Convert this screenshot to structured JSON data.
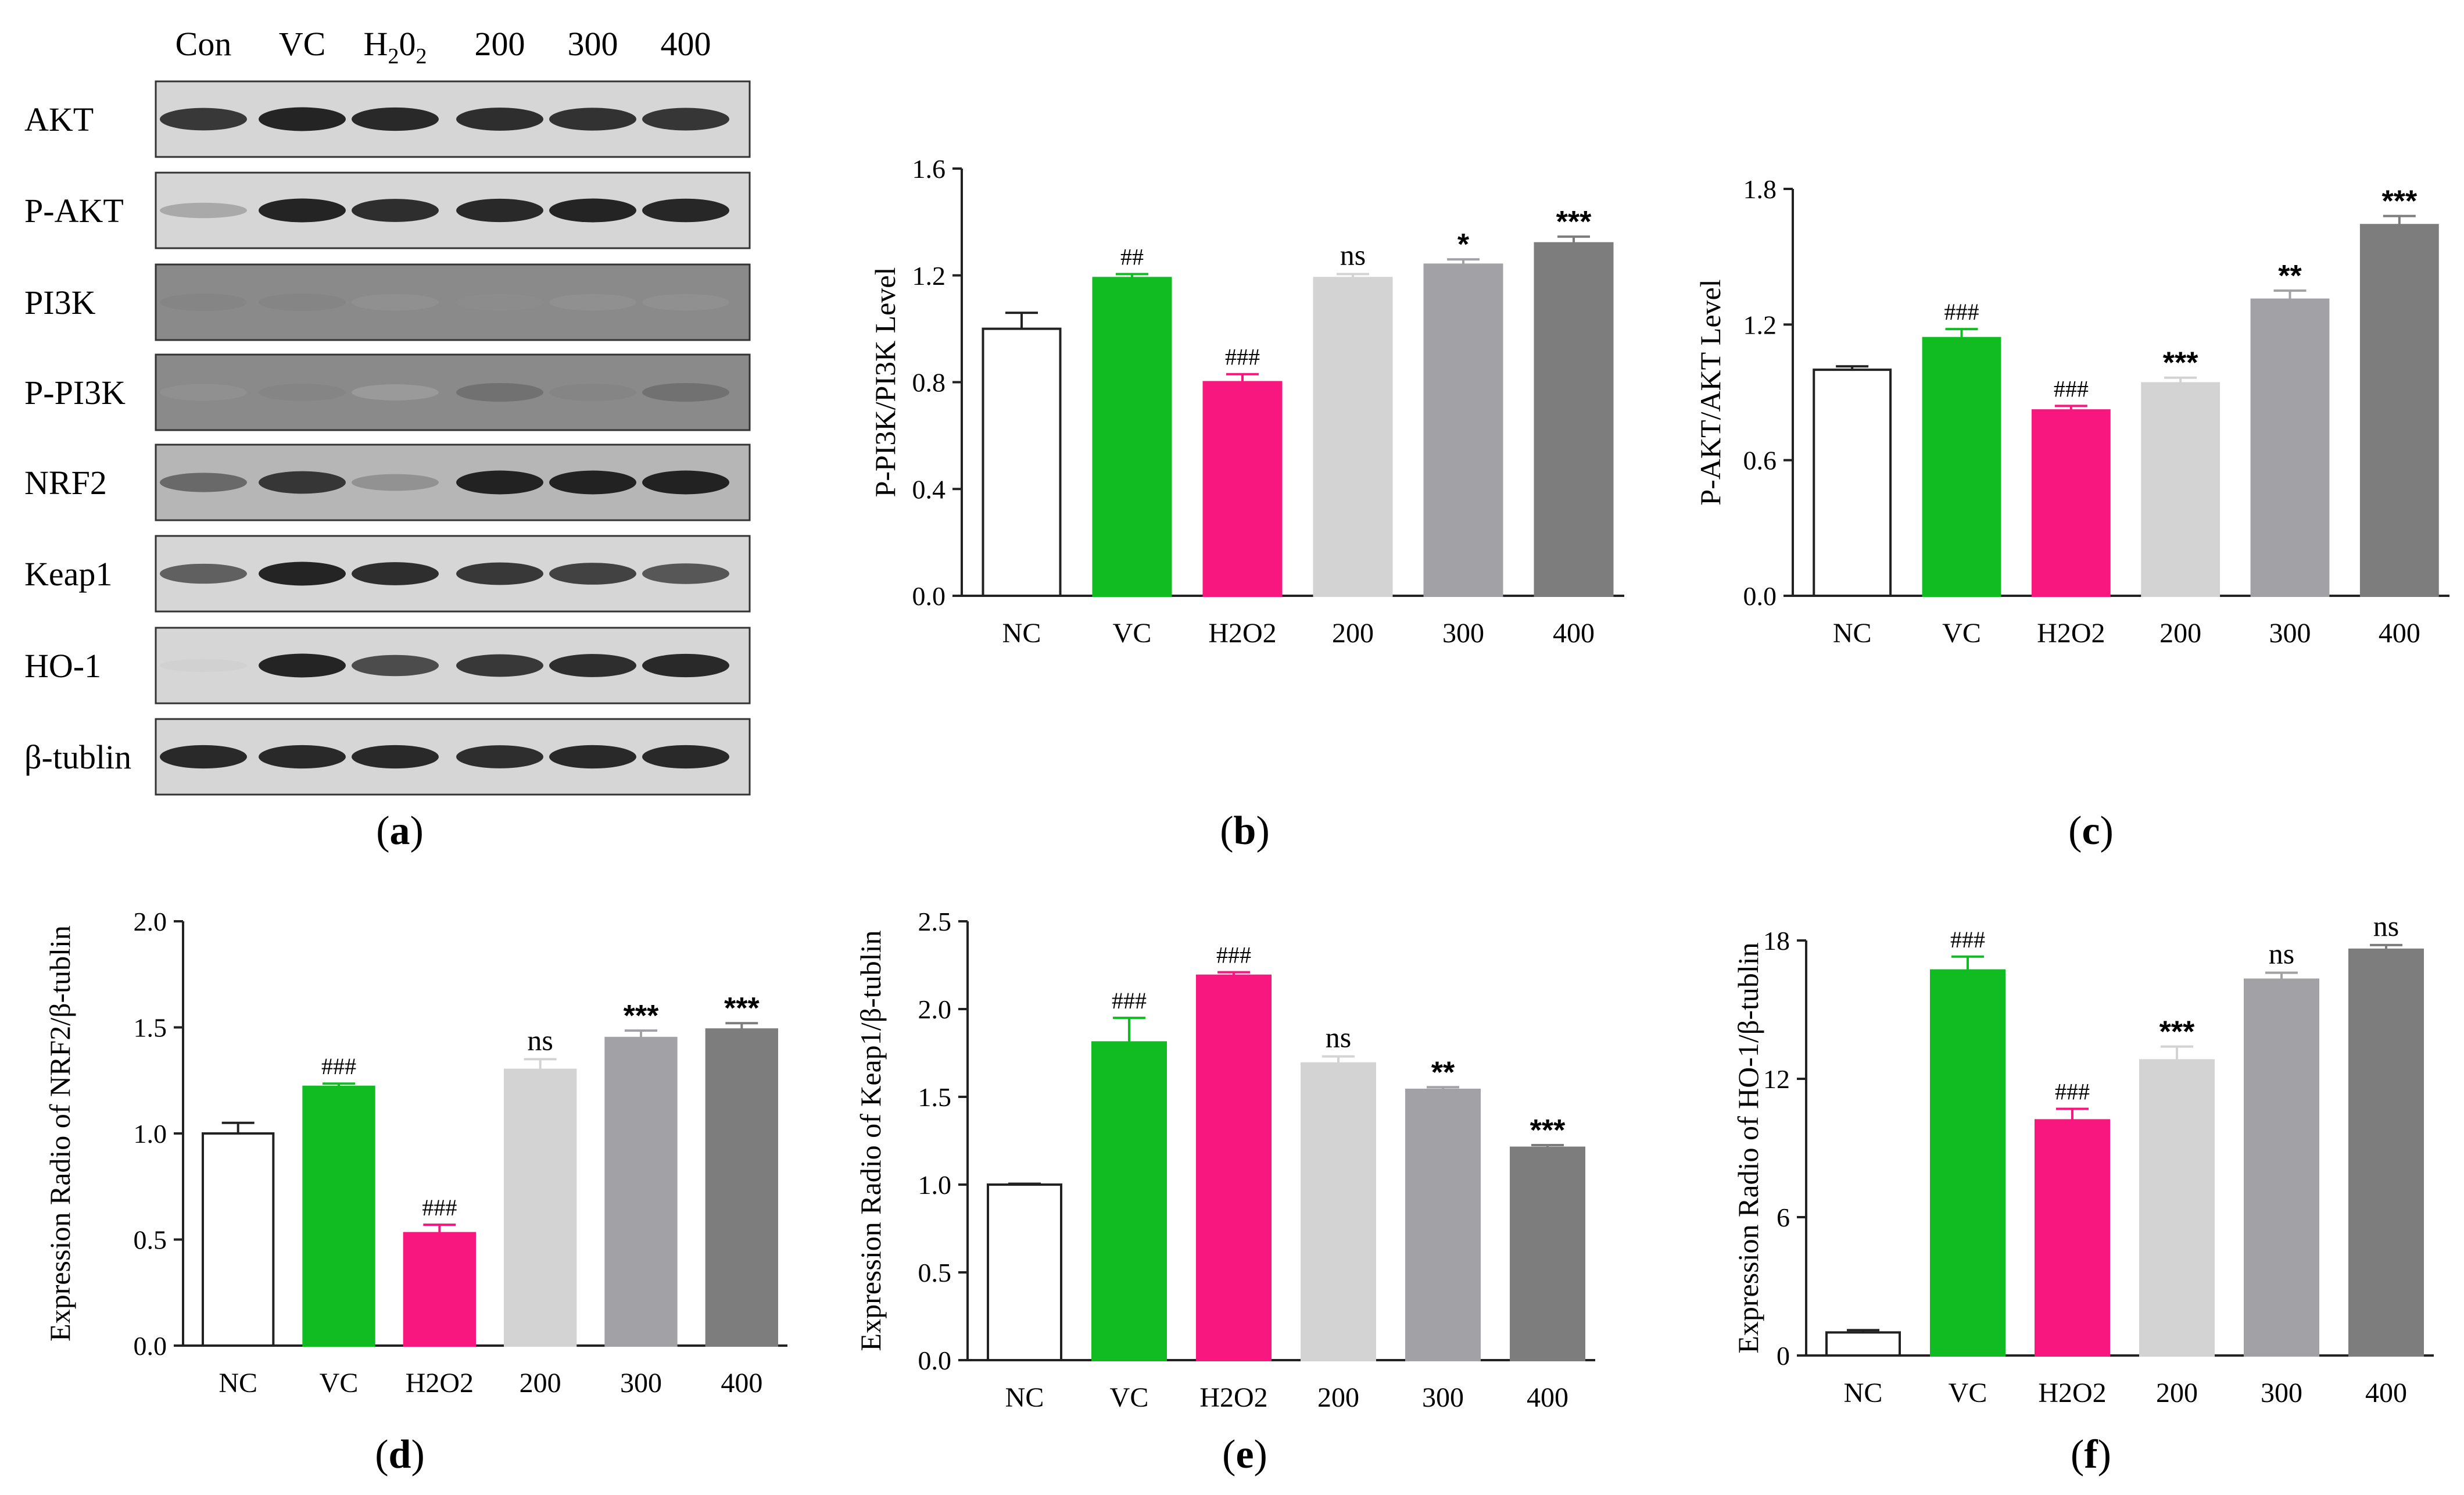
{
  "figure": {
    "panels": {
      "a": {
        "letter_open": "(",
        "letter": "a",
        "letter_close": ")"
      },
      "b": {
        "letter_open": "(",
        "letter": "b",
        "letter_close": ")"
      },
      "c": {
        "letter_open": "(",
        "letter": "c",
        "letter_close": ")"
      },
      "d": {
        "letter_open": "(",
        "letter": "d",
        "letter_close": ")"
      },
      "e": {
        "letter_open": "(",
        "letter": "e",
        "letter_close": ")"
      },
      "f": {
        "letter_open": "(",
        "letter": "f",
        "letter_close": ")"
      }
    }
  },
  "western_blot": {
    "lanes": [
      "Con",
      "VC",
      "H2O2",
      "200",
      "300",
      "400"
    ],
    "lane_h2o2": {
      "h": "H",
      "sub1": "2",
      "o": "0",
      "sub2": "2"
    },
    "rows": [
      "AKT",
      "P-AKT",
      "PI3K",
      "P-PI3K",
      "NRF2",
      "Keap1",
      "HO-1",
      "β-tublin"
    ],
    "band_intensity": [
      [
        0.85,
        0.95,
        0.92,
        0.9,
        0.88,
        0.86
      ],
      [
        0.3,
        0.95,
        0.9,
        0.92,
        0.95,
        0.93
      ],
      [
        0.45,
        0.45,
        0.4,
        0.42,
        0.4,
        0.4
      ],
      [
        0.4,
        0.45,
        0.35,
        0.55,
        0.45,
        0.55
      ],
      [
        0.6,
        0.85,
        0.4,
        0.95,
        0.95,
        0.95
      ],
      [
        0.65,
        0.95,
        0.9,
        0.85,
        0.8,
        0.7
      ],
      [
        0.1,
        0.95,
        0.75,
        0.85,
        0.9,
        0.92
      ],
      [
        0.92,
        0.92,
        0.92,
        0.9,
        0.92,
        0.92
      ]
    ]
  },
  "chart_data": [
    {
      "panel": "b",
      "type": "bar",
      "categories": [
        "NC",
        "VC",
        "H2O2",
        "200",
        "300",
        "400"
      ],
      "values": [
        1.0,
        1.19,
        0.8,
        1.19,
        1.24,
        1.32
      ],
      "errors": [
        0.06,
        0.015,
        0.03,
        0.015,
        0.02,
        0.025
      ],
      "annotations": [
        "",
        "##",
        "###",
        "ns",
        "*",
        "***"
      ],
      "ylabel": "P-PI3K/PI3K Level",
      "ylim": [
        0,
        1.6
      ],
      "yticks": [
        "0.0",
        "0.4",
        "0.8",
        "1.2",
        "1.6"
      ],
      "colors": [
        "#ffffff",
        "#11bb22",
        "#f7177f",
        "#d3d3d3",
        "#a1a1a6",
        "#7d7d7d"
      ]
    },
    {
      "panel": "c",
      "type": "bar",
      "categories": [
        "NC",
        "VC",
        "H2O2",
        "200",
        "300",
        "400"
      ],
      "values": [
        1.0,
        1.14,
        0.82,
        0.94,
        1.31,
        1.64
      ],
      "errors": [
        0.015,
        0.04,
        0.02,
        0.025,
        0.04,
        0.04
      ],
      "annotations": [
        "",
        "###",
        "###",
        "***",
        "**",
        "***"
      ],
      "ylabel": "P-AKT/AKT Level",
      "ylim": [
        0,
        1.8
      ],
      "yticks": [
        "0.0",
        "0.6",
        "1.2",
        "1.8"
      ],
      "colors": [
        "#ffffff",
        "#11bb22",
        "#f7177f",
        "#d3d3d3",
        "#a1a1a6",
        "#7d7d7d"
      ]
    },
    {
      "panel": "d",
      "type": "bar",
      "categories": [
        "NC",
        "VC",
        "H2O2",
        "200",
        "300",
        "400"
      ],
      "values": [
        1.0,
        1.22,
        0.53,
        1.3,
        1.45,
        1.49
      ],
      "errors": [
        0.05,
        0.015,
        0.04,
        0.05,
        0.035,
        0.03
      ],
      "annotations": [
        "",
        "###",
        "###",
        "ns",
        "***",
        "***"
      ],
      "ylabel": "Expression Radio of NRF2/β-tublin",
      "ylim": [
        0,
        2.0
      ],
      "yticks": [
        "0.0",
        "0.5",
        "1.0",
        "1.5",
        "2.0"
      ],
      "colors": [
        "#ffffff",
        "#11bb22",
        "#f7177f",
        "#d3d3d3",
        "#a1a1a6",
        "#7d7d7d"
      ]
    },
    {
      "panel": "e",
      "type": "bar",
      "categories": [
        "NC",
        "VC",
        "H2O2",
        "200",
        "300",
        "400"
      ],
      "values": [
        1.0,
        1.81,
        2.19,
        1.69,
        1.54,
        1.21
      ],
      "errors": [
        0.005,
        0.14,
        0.02,
        0.04,
        0.015,
        0.015
      ],
      "annotations": [
        "",
        "###",
        "###",
        "ns",
        "**",
        "***"
      ],
      "ylabel": "Expression Radio of Keap1/β-tublin",
      "ylim": [
        0,
        2.5
      ],
      "yticks": [
        "0.0",
        "0.5",
        "1.0",
        "1.5",
        "2.0",
        "2.5"
      ],
      "colors": [
        "#ffffff",
        "#11bb22",
        "#f7177f",
        "#d3d3d3",
        "#a1a1a6",
        "#7d7d7d"
      ]
    },
    {
      "panel": "f",
      "type": "bar",
      "categories": [
        "NC",
        "VC",
        "H2O2",
        "200",
        "300",
        "400"
      ],
      "values": [
        1.0,
        16.7,
        10.2,
        12.8,
        16.3,
        17.6
      ],
      "errors": [
        0.1,
        0.6,
        0.5,
        0.6,
        0.3,
        0.2
      ],
      "annotations": [
        "",
        "###",
        "###",
        "***",
        "ns",
        "ns"
      ],
      "ylabel": "Expression Radio of HO-1/β-tublin",
      "ylim": [
        0,
        18
      ],
      "yticks": [
        "0",
        "6",
        "12",
        "18"
      ],
      "colors": [
        "#ffffff",
        "#11bb22",
        "#f7177f",
        "#d3d3d3",
        "#a1a1a6",
        "#7d7d7d"
      ]
    }
  ]
}
